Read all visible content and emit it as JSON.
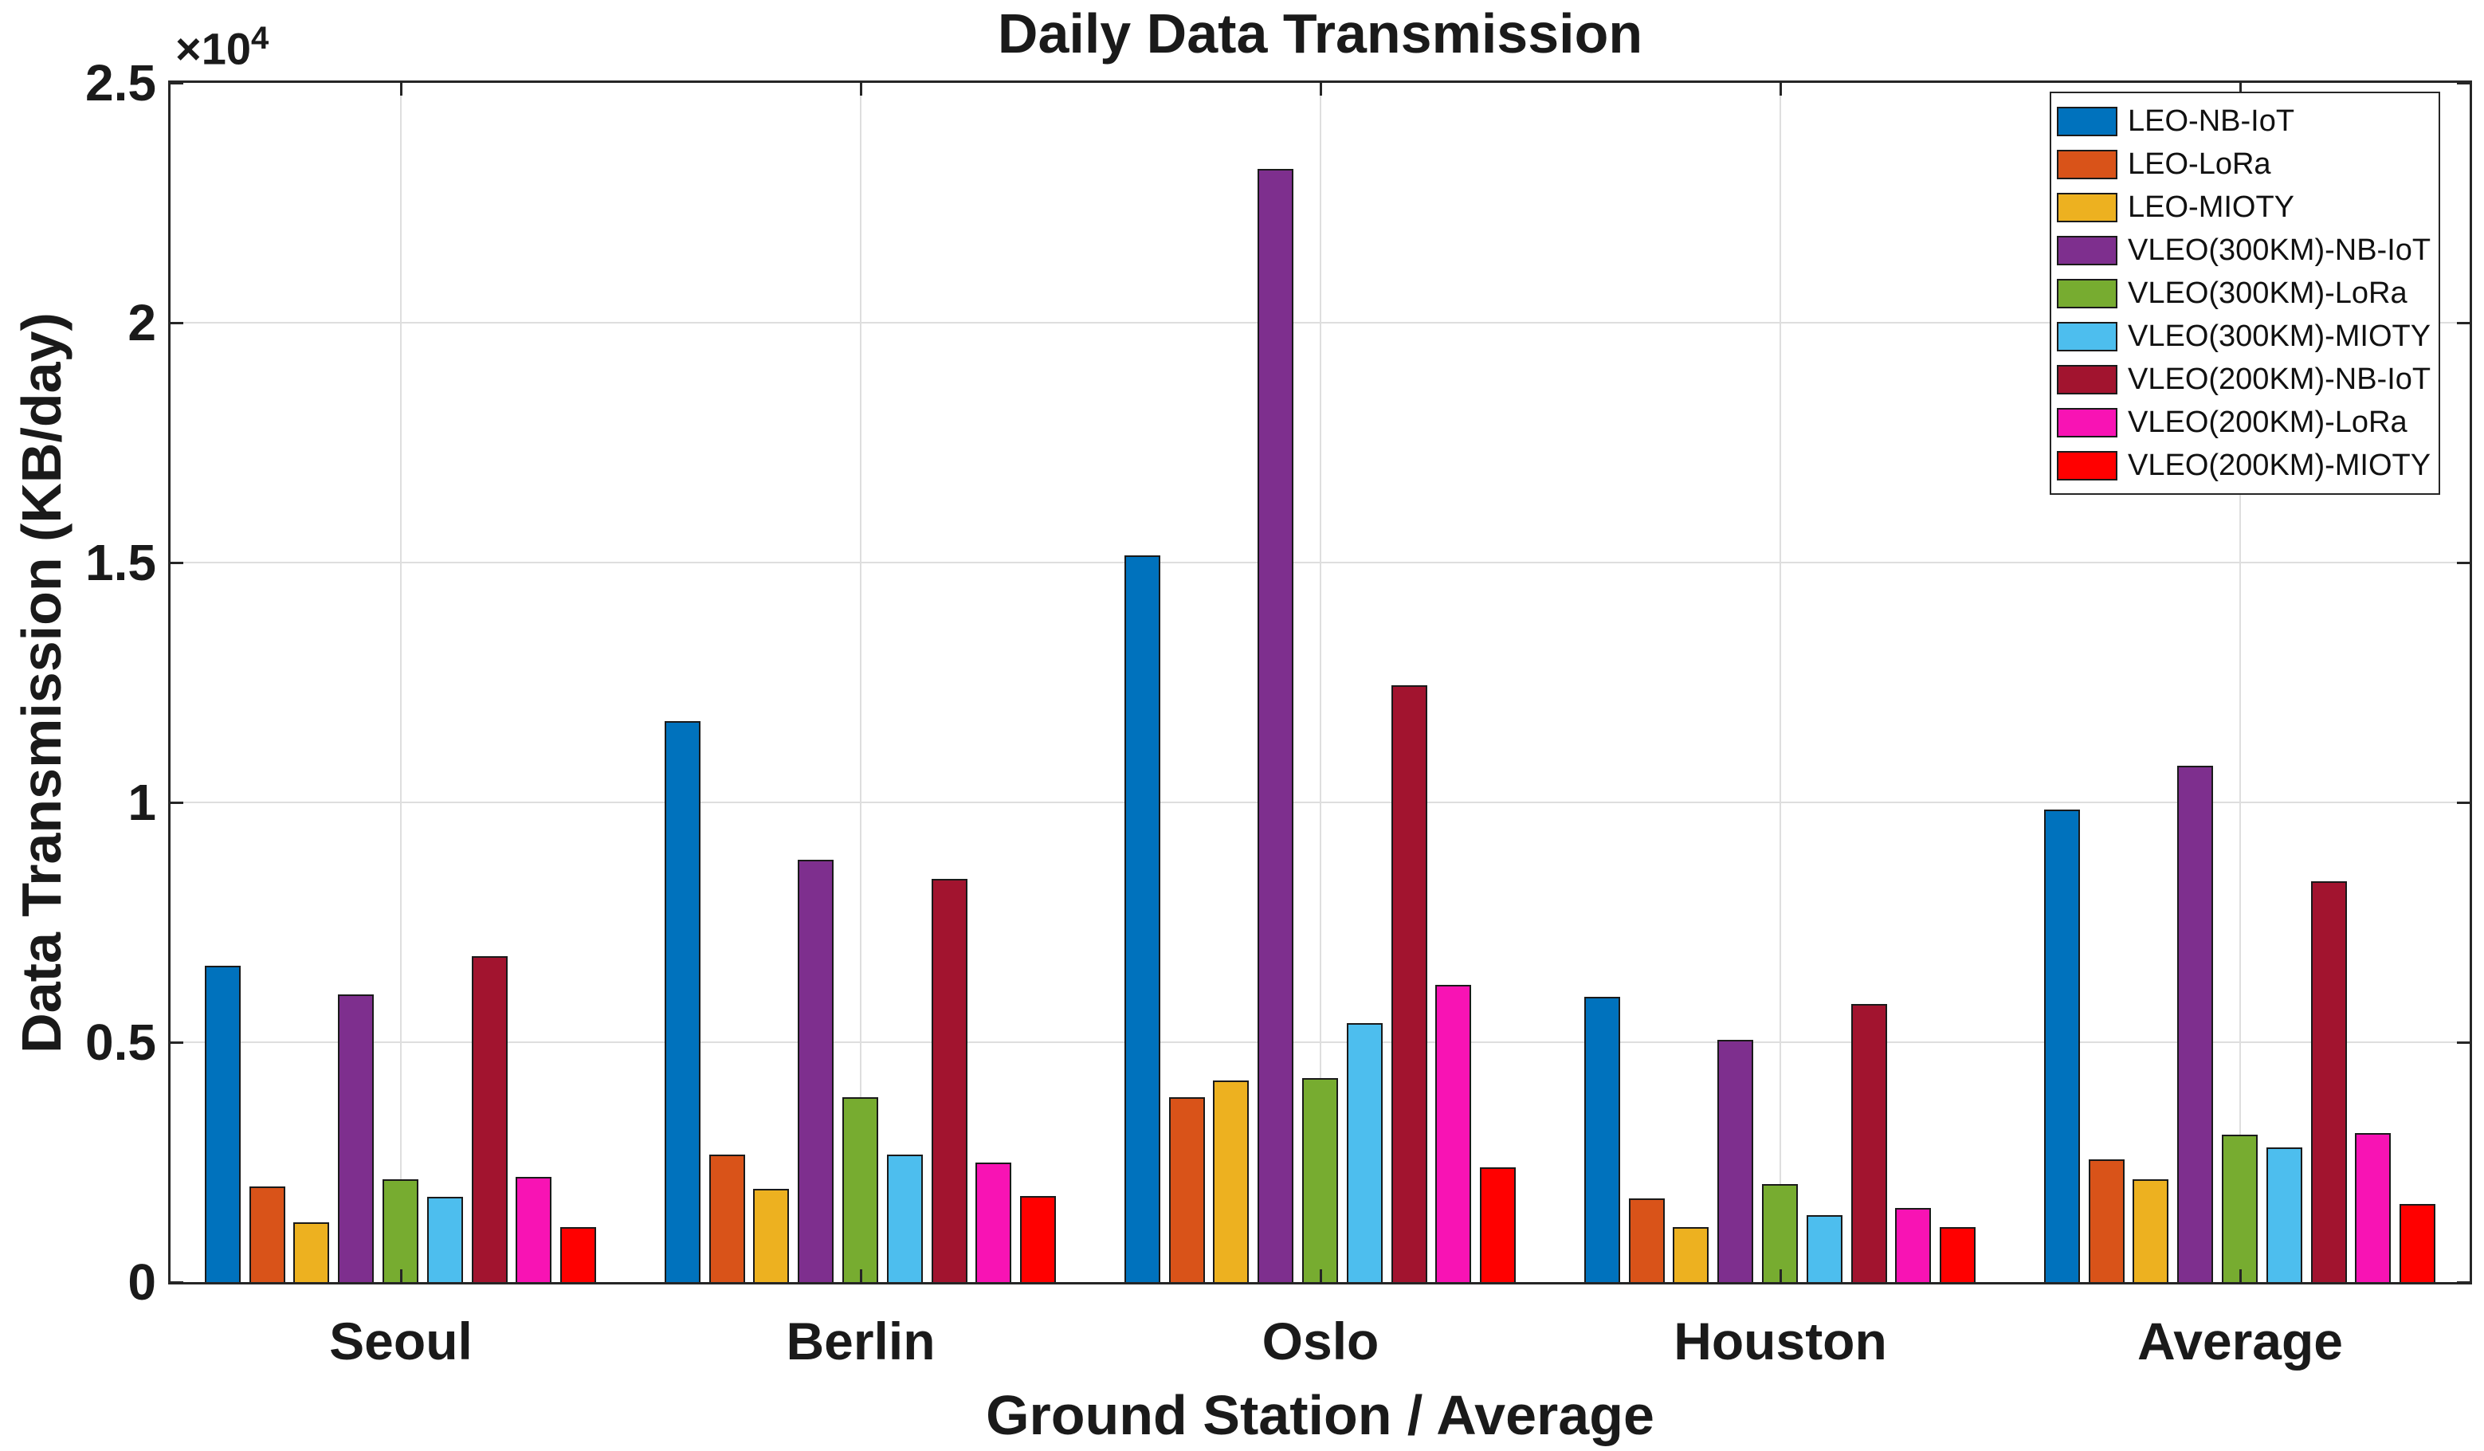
{
  "title": "Daily Data Transmission",
  "chart_data": {
    "type": "bar",
    "title": "Daily Data Transmission",
    "xlabel": "Ground Station / Average",
    "ylabel": "Data Transmission (KB/day)",
    "offset_mantissa": "×10",
    "offset_exponent": "4",
    "categories": [
      "Seoul",
      "Berlin",
      "Oslo",
      "Houston",
      "Average"
    ],
    "ylim": [
      0,
      25000
    ],
    "ytick_values": [
      0,
      5000,
      10000,
      15000,
      20000,
      25000
    ],
    "ytick_labels": [
      "0",
      "0.5",
      "1",
      "1.5",
      "2",
      "2.5"
    ],
    "grid": true,
    "legend_position": "top-right",
    "axis_color": "#262626",
    "grid_color": "#DEDEDE",
    "bar_edge_color": "#1a1a1a",
    "series": [
      {
        "name": "LEO-NB-IoT",
        "color": "#0072BD",
        "values": [
          6600,
          11700,
          15150,
          5950,
          9850
        ]
      },
      {
        "name": "LEO-LoRa",
        "color": "#D95319",
        "values": [
          2000,
          2650,
          3850,
          1750,
          2560
        ]
      },
      {
        "name": "LEO-MIOTY",
        "color": "#EDB120",
        "values": [
          1250,
          1950,
          4200,
          1150,
          2140
        ]
      },
      {
        "name": "VLEO(300KM)-NB-IoT",
        "color": "#7E2F8E",
        "values": [
          6000,
          8800,
          23200,
          5050,
          10760
        ]
      },
      {
        "name": "VLEO(300KM)-LoRa",
        "color": "#77AC30",
        "values": [
          2150,
          3850,
          4250,
          2050,
          3075
        ]
      },
      {
        "name": "VLEO(300KM)-MIOTY",
        "color": "#4DBEEE",
        "values": [
          1775,
          2650,
          5400,
          1400,
          2805
        ]
      },
      {
        "name": "VLEO(200KM)-NB-IoT",
        "color": "#A2142F",
        "values": [
          6800,
          8400,
          12450,
          5800,
          8360
        ]
      },
      {
        "name": "VLEO(200KM)-LoRa",
        "color": "#F813B4",
        "values": [
          2200,
          2500,
          6200,
          1550,
          3110
        ]
      },
      {
        "name": "VLEO(200KM)-MIOTY",
        "color": "#FF0000",
        "values": [
          1150,
          1800,
          2400,
          1150,
          1625
        ]
      }
    ]
  }
}
